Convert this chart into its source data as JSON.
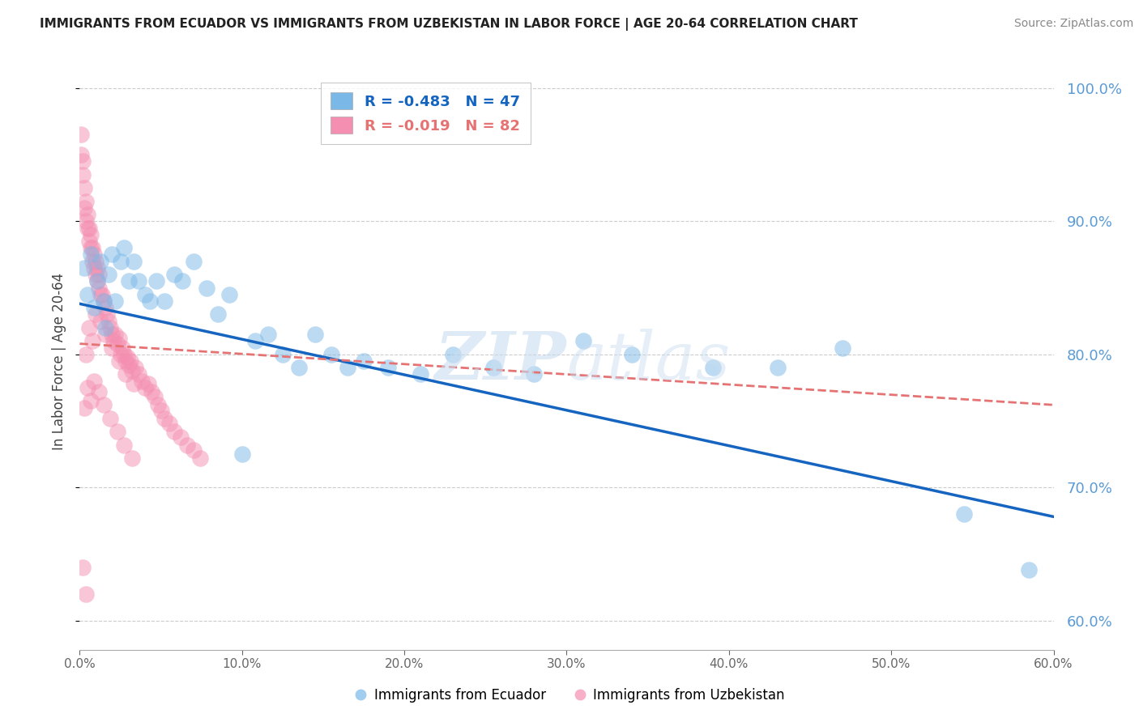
{
  "title": "IMMIGRANTS FROM ECUADOR VS IMMIGRANTS FROM UZBEKISTAN IN LABOR FORCE | AGE 20-64 CORRELATION CHART",
  "source": "Source: ZipAtlas.com",
  "ylabel": "In Labor Force | Age 20-64",
  "legend_ecuador": "Immigrants from Ecuador",
  "legend_uzbekistan": "Immigrants from Uzbekistan",
  "R_ecuador": -0.483,
  "N_ecuador": 47,
  "R_uzbekistan": -0.019,
  "N_uzbekistan": 82,
  "color_ecuador": "#7ab8e8",
  "color_uzbekistan": "#f48fb1",
  "color_ecuador_line": "#1565c0",
  "color_uzbekistan_line": "#e57373",
  "xmin": 0.0,
  "xmax": 0.6,
  "ymin": 0.578,
  "ymax": 1.012,
  "yticks": [
    0.6,
    0.7,
    0.8,
    0.9,
    1.0
  ],
  "xticks": [
    0.0,
    0.1,
    0.2,
    0.3,
    0.4,
    0.5,
    0.6
  ],
  "watermark_zip": "ZIP",
  "watermark_atlas": "atlas",
  "ecuador_x": [
    0.003,
    0.005,
    0.007,
    0.009,
    0.011,
    0.013,
    0.015,
    0.016,
    0.018,
    0.02,
    0.022,
    0.025,
    0.027,
    0.03,
    0.033,
    0.036,
    0.04,
    0.043,
    0.047,
    0.052,
    0.058,
    0.063,
    0.07,
    0.078,
    0.085,
    0.092,
    0.1,
    0.108,
    0.116,
    0.125,
    0.135,
    0.145,
    0.155,
    0.165,
    0.175,
    0.19,
    0.21,
    0.23,
    0.255,
    0.28,
    0.31,
    0.34,
    0.39,
    0.43,
    0.47,
    0.545,
    0.585
  ],
  "ecuador_y": [
    0.865,
    0.845,
    0.875,
    0.835,
    0.855,
    0.87,
    0.84,
    0.82,
    0.86,
    0.875,
    0.84,
    0.87,
    0.88,
    0.855,
    0.87,
    0.855,
    0.845,
    0.84,
    0.855,
    0.84,
    0.86,
    0.855,
    0.87,
    0.85,
    0.83,
    0.845,
    0.725,
    0.81,
    0.815,
    0.8,
    0.79,
    0.815,
    0.8,
    0.79,
    0.795,
    0.79,
    0.785,
    0.8,
    0.79,
    0.785,
    0.81,
    0.8,
    0.79,
    0.79,
    0.805,
    0.68,
    0.638
  ],
  "uzbekistan_x": [
    0.001,
    0.001,
    0.002,
    0.002,
    0.003,
    0.003,
    0.004,
    0.004,
    0.005,
    0.005,
    0.006,
    0.006,
    0.007,
    0.007,
    0.008,
    0.008,
    0.009,
    0.009,
    0.01,
    0.01,
    0.011,
    0.011,
    0.012,
    0.012,
    0.013,
    0.014,
    0.015,
    0.016,
    0.017,
    0.018,
    0.019,
    0.02,
    0.021,
    0.022,
    0.023,
    0.024,
    0.025,
    0.026,
    0.027,
    0.028,
    0.029,
    0.03,
    0.031,
    0.032,
    0.034,
    0.036,
    0.038,
    0.04,
    0.042,
    0.044,
    0.046,
    0.048,
    0.05,
    0.052,
    0.055,
    0.058,
    0.062,
    0.066,
    0.07,
    0.074,
    0.004,
    0.006,
    0.008,
    0.01,
    0.013,
    0.016,
    0.02,
    0.024,
    0.028,
    0.033,
    0.003,
    0.005,
    0.007,
    0.009,
    0.012,
    0.015,
    0.019,
    0.023,
    0.027,
    0.032,
    0.002,
    0.004
  ],
  "uzbekistan_y": [
    0.95,
    0.965,
    0.935,
    0.945,
    0.91,
    0.925,
    0.9,
    0.915,
    0.895,
    0.905,
    0.885,
    0.895,
    0.88,
    0.89,
    0.87,
    0.88,
    0.865,
    0.875,
    0.86,
    0.87,
    0.855,
    0.865,
    0.85,
    0.86,
    0.845,
    0.845,
    0.84,
    0.835,
    0.83,
    0.825,
    0.82,
    0.815,
    0.81,
    0.815,
    0.808,
    0.812,
    0.8,
    0.805,
    0.8,
    0.795,
    0.798,
    0.792,
    0.795,
    0.788,
    0.79,
    0.785,
    0.78,
    0.775,
    0.778,
    0.772,
    0.768,
    0.762,
    0.758,
    0.752,
    0.748,
    0.742,
    0.738,
    0.732,
    0.728,
    0.722,
    0.8,
    0.82,
    0.81,
    0.83,
    0.825,
    0.815,
    0.805,
    0.795,
    0.785,
    0.778,
    0.76,
    0.775,
    0.765,
    0.78,
    0.772,
    0.762,
    0.752,
    0.742,
    0.732,
    0.722,
    0.64,
    0.62
  ],
  "ecuador_line_x0": 0.0,
  "ecuador_line_x1": 0.6,
  "ecuador_line_y0": 0.838,
  "ecuador_line_y1": 0.678,
  "uzbekistan_line_x0": 0.0,
  "uzbekistan_line_x1": 0.6,
  "uzbekistan_line_y0": 0.808,
  "uzbekistan_line_y1": 0.762
}
